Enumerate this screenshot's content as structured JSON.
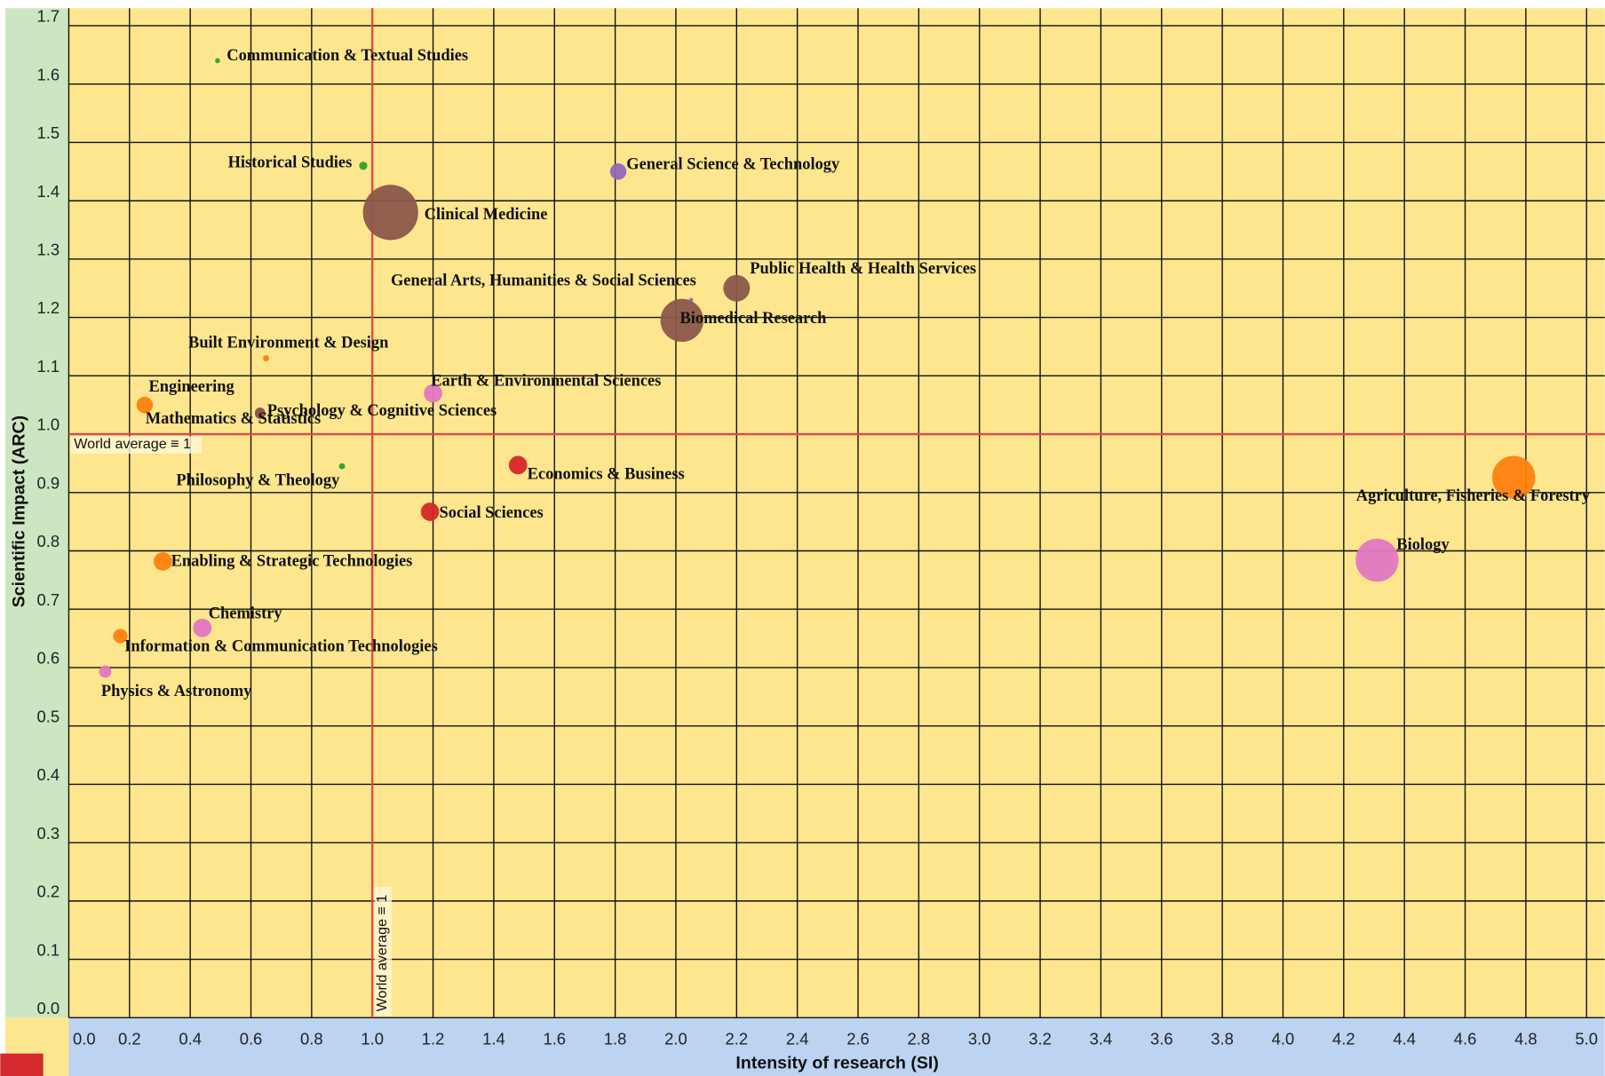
{
  "chart_data": {
    "type": "bubble",
    "x_label": "Intensity of research (SI)",
    "y_label": "Scientific Impact (ARC)",
    "xlim": [
      0,
      5.06
    ],
    "ylim": [
      0,
      1.73
    ],
    "grid": true,
    "xticks": [
      {
        "value": 0,
        "label": "0.0"
      },
      {
        "value": 0.2,
        "label": "0.2"
      },
      {
        "value": 0.4,
        "label": "0.4"
      },
      {
        "value": 0.6,
        "label": "0.6"
      },
      {
        "value": 0.8,
        "label": "0.8"
      },
      {
        "value": 1,
        "label": "1.0"
      },
      {
        "value": 1.2,
        "label": "1.2"
      },
      {
        "value": 1.4,
        "label": "1.4"
      },
      {
        "value": 1.6,
        "label": "1.6"
      },
      {
        "value": 1.8,
        "label": "1.8"
      },
      {
        "value": 2,
        "label": "2.0"
      },
      {
        "value": 2.2,
        "label": "2.2"
      },
      {
        "value": 2.4,
        "label": "2.4"
      },
      {
        "value": 2.6,
        "label": "2.6"
      },
      {
        "value": 2.8,
        "label": "2.8"
      },
      {
        "value": 3,
        "label": "3.0"
      },
      {
        "value": 3.2,
        "label": "3.2"
      },
      {
        "value": 3.4,
        "label": "3.4"
      },
      {
        "value": 3.6,
        "label": "3.6"
      },
      {
        "value": 3.8,
        "label": "3.8"
      },
      {
        "value": 4,
        "label": "4.0"
      },
      {
        "value": 4.2,
        "label": "4.2"
      },
      {
        "value": 4.4,
        "label": "4.4"
      },
      {
        "value": 4.6,
        "label": "4.6"
      },
      {
        "value": 4.8,
        "label": "4.8"
      },
      {
        "value": 5,
        "label": "5.0"
      }
    ],
    "yticks": [
      {
        "value": 0,
        "label": "0.0"
      },
      {
        "value": 0.1,
        "label": "0.1"
      },
      {
        "value": 0.2,
        "label": "0.2"
      },
      {
        "value": 0.3,
        "label": "0.3"
      },
      {
        "value": 0.4,
        "label": "0.4"
      },
      {
        "value": 0.5,
        "label": "0.5"
      },
      {
        "value": 0.6,
        "label": "0.6"
      },
      {
        "value": 0.7,
        "label": "0.7"
      },
      {
        "value": 0.8,
        "label": "0.8"
      },
      {
        "value": 0.9,
        "label": "0.9"
      },
      {
        "value": 1,
        "label": "1.0"
      },
      {
        "value": 1.1,
        "label": "1.1"
      },
      {
        "value": 1.2,
        "label": "1.2"
      },
      {
        "value": 1.3,
        "label": "1.3"
      },
      {
        "value": 1.4,
        "label": "1.4"
      },
      {
        "value": 1.5,
        "label": "1.5"
      },
      {
        "value": 1.6,
        "label": "1.6"
      },
      {
        "value": 1.7,
        "label": "1.7"
      }
    ],
    "reference_lines": [
      {
        "axis": "y",
        "value": 1,
        "label": "World average ≡ 1",
        "color": "#e8424a"
      },
      {
        "axis": "x",
        "value": 1,
        "label": "World average ≡ 1",
        "color": "#e8424a"
      }
    ],
    "points": [
      {
        "label": "Communication & Textual Studies",
        "x": 0.49,
        "y": 1.64,
        "size": 6,
        "color": "#2ca02c"
      },
      {
        "label": "Historical Studies",
        "x": 0.97,
        "y": 1.46,
        "size": 16,
        "color": "#2ca02c"
      },
      {
        "label": "Clinical Medicine",
        "x": 1.06,
        "y": 1.38,
        "size": 729,
        "color": "#8c564b"
      },
      {
        "label": "General Science & Technology",
        "x": 1.81,
        "y": 1.45,
        "size": 64,
        "color": "#9467bd"
      },
      {
        "label": "Public Health & Health Services",
        "x": 2.2,
        "y": 1.25,
        "size": 169,
        "color": "#8c564b"
      },
      {
        "label": "General Arts, Humanities & Social Sciences",
        "x": 2.05,
        "y": 1.23,
        "size": 4,
        "color": "#9467bd"
      },
      {
        "label": "Biomedical Research",
        "x": 2.02,
        "y": 1.195,
        "size": 441,
        "color": "#8c564b"
      },
      {
        "label": "Built Environment & Design",
        "x": 0.65,
        "y": 1.13,
        "size": 9,
        "color": "#ff7f0e"
      },
      {
        "label": "Engineering",
        "x": 0.25,
        "y": 1.05,
        "size": 64,
        "color": "#ff7f0e"
      },
      {
        "label": "Mathematics & Statistics",
        "x": 0.63,
        "y": 1.035,
        "size": 25,
        "color": "#8c564b"
      },
      {
        "label": "Psychology & Cognitive Sciences",
        "x": 0.63,
        "y": 1.037,
        "size": 25,
        "color": "#8c564b"
      },
      {
        "label": "Earth & Environmental Sciences",
        "x": 1.2,
        "y": 1.07,
        "size": 81,
        "color": "#e377c2"
      },
      {
        "label": "Philosophy & Theology",
        "x": 0.9,
        "y": 0.945,
        "size": 9,
        "color": "#2ca02c"
      },
      {
        "label": "Economics & Business",
        "x": 1.48,
        "y": 0.947,
        "size": 81,
        "color": "#d62728"
      },
      {
        "label": "Social Sciences",
        "x": 1.19,
        "y": 0.867,
        "size": 81,
        "color": "#d62728"
      },
      {
        "label": "Agriculture, Fisheries & Forestry",
        "x": 4.76,
        "y": 0.926,
        "size": 441,
        "color": "#ff7f0e"
      },
      {
        "label": "Biology",
        "x": 4.31,
        "y": 0.784,
        "size": 441,
        "color": "#e377c2"
      },
      {
        "label": "Enabling & Strategic Technologies",
        "x": 0.31,
        "y": 0.782,
        "size": 81,
        "color": "#ff7f0e"
      },
      {
        "label": "Chemistry",
        "x": 0.44,
        "y": 0.668,
        "size": 81,
        "color": "#e377c2"
      },
      {
        "label": "Information & Communication Technologies",
        "x": 0.17,
        "y": 0.654,
        "size": 49,
        "color": "#ff7f0e"
      },
      {
        "label": "Physics & Astronomy",
        "x": 0.12,
        "y": 0.593,
        "size": 36,
        "color": "#e377c2"
      }
    ]
  }
}
